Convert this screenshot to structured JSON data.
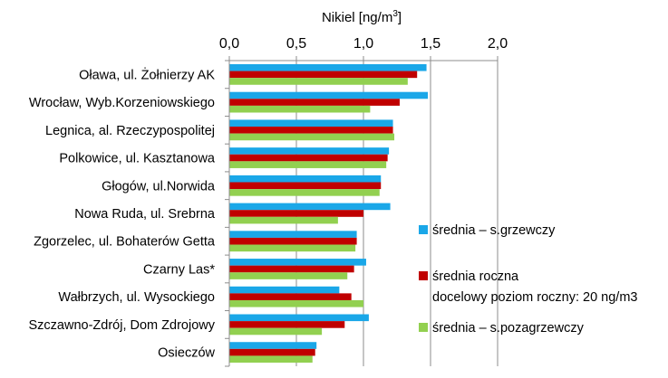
{
  "chart_data": {
    "type": "bar",
    "orientation": "horizontal",
    "title": "Nikiel [ng/m3]",
    "title_main": "Nikiel [ng/m",
    "title_sup": "3",
    "title_end": "]",
    "xlim": [
      0,
      2
    ],
    "ticks": [
      0,
      0.5,
      1,
      1.5,
      2
    ],
    "tick_labels": [
      "0,0",
      "0,5",
      "1,0",
      "1,5",
      "2,0"
    ],
    "x_axis_position": "top",
    "grid": "vertical",
    "categories": [
      "Oława, ul. Żołnierzy AK",
      "Wrocław, Wyb.Korzeniowskiego",
      "Legnica, al. Rzeczypospolitej",
      "Polkowice, ul. Kasztanowa",
      "Głogów, ul.Norwida",
      "Nowa Ruda, ul. Srebrna",
      "Zgorzelec, ul. Bohaterów Getta",
      "Czarny Las*",
      "Wałbrzych, ul. Wysockiego",
      "Szczawno-Zdrój, Dom Zdrojowy",
      "Osieczów"
    ],
    "series": [
      {
        "name": "średnia – s.grzewczy",
        "color": "#1aa7e8",
        "values": [
          1.47,
          1.48,
          1.22,
          1.19,
          1.13,
          1.2,
          0.95,
          1.02,
          0.82,
          1.04,
          0.65
        ]
      },
      {
        "name": "średnia roczna",
        "color": "#c00000",
        "values": [
          1.4,
          1.27,
          1.22,
          1.18,
          1.13,
          1.0,
          0.95,
          0.93,
          0.91,
          0.86,
          0.64
        ]
      },
      {
        "name": "średnia – s.pozagrzewczy",
        "color": "#92d050",
        "values": [
          1.33,
          1.05,
          1.23,
          1.17,
          1.12,
          0.81,
          0.94,
          0.88,
          1.0,
          0.69,
          0.62
        ]
      }
    ],
    "legend": {
      "position": "right",
      "items": [
        {
          "color": "#1aa7e8",
          "label": "średnia – s.grzewczy"
        },
        {
          "color": "#c00000",
          "label": "średnia roczna",
          "label2": "docelowy poziom roczny: 20 ng/m3"
        },
        {
          "color": "#92d050",
          "label": "średnia – s.pozagrzewczy"
        }
      ]
    }
  }
}
